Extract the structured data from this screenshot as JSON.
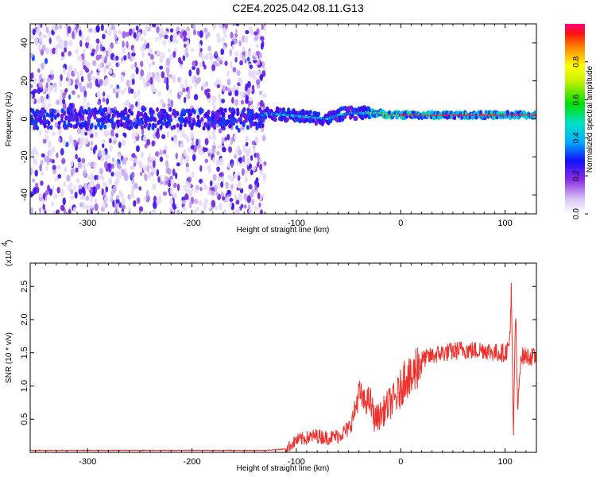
{
  "title": "C2E4.2025.042.08.11.G13",
  "chart_data": [
    {
      "type": "heatmap",
      "xlabel": "Height of straight line (km)",
      "ylabel": "Frequency (Hz)",
      "xlim": [
        -355,
        130
      ],
      "ylim": [
        -50,
        50
      ],
      "x_ticks": [
        -300,
        -200,
        -100,
        0,
        100
      ],
      "y_ticks": [
        -40,
        -20,
        0,
        20,
        40
      ],
      "colorbar": {
        "label": "Normalized spectral amplitude",
        "range": [
          0,
          1
        ],
        "ticks": [
          0.0,
          0.2,
          0.4,
          0.6,
          0.8
        ]
      },
      "signal_center_hz": [
        [
          -130,
          3
        ],
        [
          -110,
          2
        ],
        [
          -90,
          1
        ],
        [
          -70,
          0
        ],
        [
          -60,
          2
        ],
        [
          -50,
          3
        ],
        [
          -40,
          3
        ],
        [
          -30,
          3
        ],
        [
          -20,
          3
        ],
        [
          -10,
          2
        ],
        [
          0,
          2
        ],
        [
          20,
          2
        ],
        [
          40,
          2
        ],
        [
          60,
          2
        ],
        [
          80,
          2
        ],
        [
          100,
          2
        ],
        [
          110,
          2
        ],
        [
          130,
          2
        ]
      ],
      "noise_region_x": [
        -355,
        -130
      ]
    },
    {
      "type": "line",
      "xlabel": "Height of straight line (km)",
      "ylabel": "SNR (10 * v/v)",
      "y_scale_label": "(x10",
      "y_scale_exp": "4",
      "xlim": [
        -355,
        130
      ],
      "ylim": [
        0,
        2.85
      ],
      "x_ticks": [
        -300,
        -200,
        -100,
        0,
        100
      ],
      "y_ticks": [
        0.5,
        1.0,
        1.5,
        2.0,
        2.5
      ],
      "color": "#f0302a",
      "series": [
        {
          "x": [
            -355,
            -320,
            -280,
            -240,
            -200,
            -160,
            -130,
            -110,
            -100,
            -90,
            -80,
            -70,
            -60,
            -50,
            -45,
            -40,
            -35,
            -30,
            -25,
            -20,
            -15,
            -10,
            -5,
            0,
            5,
            10,
            15,
            20,
            30,
            40,
            50,
            60,
            70,
            80,
            90,
            100,
            104,
            106,
            108,
            110,
            112,
            115,
            120,
            130
          ],
          "y": [
            0.03,
            0.03,
            0.03,
            0.03,
            0.03,
            0.03,
            0.03,
            0.05,
            0.18,
            0.22,
            0.25,
            0.22,
            0.25,
            0.35,
            0.55,
            0.9,
            0.75,
            0.8,
            0.5,
            0.55,
            0.65,
            0.75,
            0.8,
            0.95,
            1.2,
            1.05,
            1.3,
            1.4,
            1.45,
            1.5,
            1.52,
            1.55,
            1.53,
            1.55,
            1.5,
            1.5,
            1.6,
            2.4,
            0.2,
            2.2,
            0.6,
            1.45,
            1.45,
            1.43
          ]
        }
      ]
    }
  ]
}
